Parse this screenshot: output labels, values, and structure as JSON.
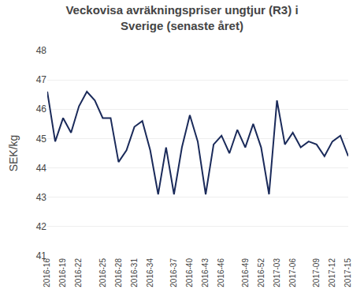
{
  "chart_data": {
    "type": "line",
    "title": "Veckovisa avräkningspriser ungtjur (R3) i\nSverige (senaste året)",
    "y_label": "SEK/kg",
    "categories": [
      "2016-16",
      null,
      "2016-19",
      null,
      "2016-22",
      null,
      null,
      "2016-25",
      null,
      "2016-28",
      null,
      "2016-31",
      null,
      "2016-34",
      null,
      null,
      "2016-37",
      null,
      "2016-40",
      null,
      "2016-43",
      null,
      "2016-46",
      null,
      null,
      "2016-49",
      null,
      "2016-52",
      null,
      "2017-03",
      null,
      "2017-06",
      null,
      null,
      "2017-09",
      null,
      "2017-12",
      null,
      "2017-15"
    ],
    "values": [
      46.6,
      44.9,
      45.7,
      45.2,
      46.1,
      46.6,
      46.3,
      45.7,
      45.7,
      44.2,
      44.6,
      45.4,
      45.6,
      44.6,
      43.1,
      44.7,
      43.1,
      44.7,
      45.8,
      44.9,
      43.1,
      44.8,
      45.1,
      44.5,
      45.3,
      44.7,
      45.5,
      44.7,
      43.1,
      46.3,
      44.8,
      45.2,
      44.7,
      44.9,
      44.8,
      44.4,
      44.9,
      45.1,
      44.4
    ],
    "color": "#1a2a5a",
    "ylim": [
      41,
      48
    ],
    "yticks": [
      41,
      42,
      43,
      44,
      45,
      46,
      47,
      48
    ],
    "grid": true
  }
}
